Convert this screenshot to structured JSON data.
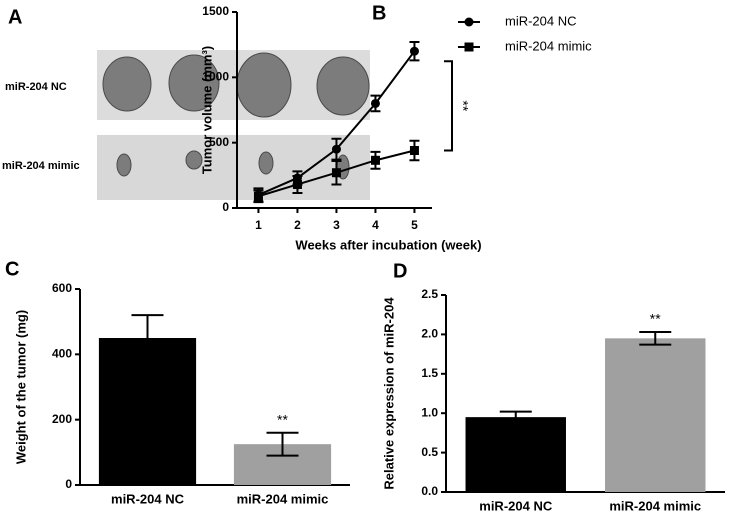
{
  "panel_a": {
    "label": "A",
    "rows": [
      "miR-204 NC",
      "miR-204 mimic"
    ]
  },
  "chart_data": [
    {
      "type": "line",
      "panel": "B",
      "x": [
        1,
        2,
        3,
        4,
        5
      ],
      "xlim": [
        0.45,
        5.45
      ],
      "xticks": [
        1,
        2,
        3,
        4,
        5
      ],
      "ylim": [
        0,
        1500
      ],
      "yticks": [
        0,
        500,
        1000,
        1500
      ],
      "xlabel": "Weeks after incubation (week)",
      "ylabel": "Tumor volume (mm³)",
      "series": [
        {
          "name": "miR-204 NC",
          "color": "#000000",
          "marker": "circle",
          "values": [
            100,
            230,
            450,
            800,
            1200
          ],
          "errors": [
            50,
            50,
            80,
            60,
            70
          ]
        },
        {
          "name": "miR-204 mimic",
          "color": "#000000",
          "marker": "square",
          "values": [
            90,
            180,
            270,
            365,
            440
          ],
          "errors": [
            45,
            65,
            90,
            65,
            75
          ]
        }
      ],
      "annotation": "**"
    },
    {
      "type": "bar",
      "panel": "C",
      "categories": [
        "miR-204 NC",
        "miR-204 mimic"
      ],
      "values": [
        450,
        125
      ],
      "errors": [
        70,
        35
      ],
      "colors": [
        "#000000",
        "#a0a0a0"
      ],
      "ylim": [
        0,
        600
      ],
      "yticks": [
        0,
        200,
        400,
        600
      ],
      "ylabel": "Weight of the tumor (mg)",
      "annotation": "**"
    },
    {
      "type": "bar",
      "panel": "D",
      "categories": [
        "miR-204 NC",
        "miR-204 mimic"
      ],
      "values": [
        0.95,
        1.95
      ],
      "errors": [
        0.07,
        0.08
      ],
      "colors": [
        "#000000",
        "#a0a0a0"
      ],
      "ylim": [
        0,
        2.5
      ],
      "yticks": [
        {
          "value": 0,
          "label": "0.0"
        },
        0.5,
        {
          "value": 1,
          "label": "1.0"
        },
        1.5,
        {
          "value": 2,
          "label": "2.0"
        },
        2.5
      ],
      "ylabel": "Relative expression of  miR-204",
      "annotation": "**"
    }
  ]
}
